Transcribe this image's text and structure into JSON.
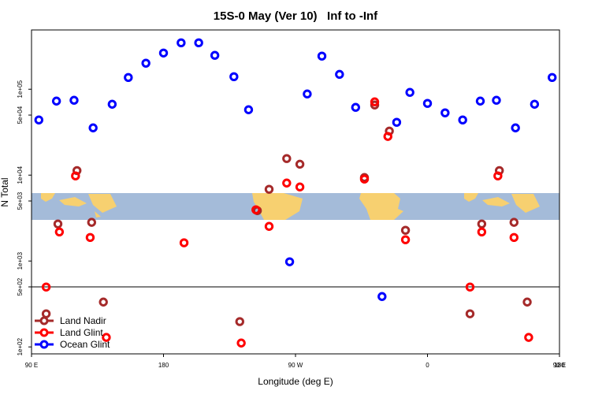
{
  "chart_data": {
    "type": "scatter",
    "title": "15S-0 May (Ver 10)   Inf to -Inf",
    "x_label": "Longitude (deg E)",
    "y_label": "N Total",
    "xlim": [
      90,
      450
    ],
    "ylim": [
      83,
      490000
    ],
    "log_y": true,
    "legend": "lower left",
    "hline": 500,
    "xticks": [
      {
        "value": 90,
        "label": "90 E"
      },
      {
        "value": 180,
        "label": "180"
      },
      {
        "value": 270,
        "label": "90 W"
      },
      {
        "value": 360,
        "label": "0"
      },
      {
        "value": 450,
        "label": "90 E"
      },
      {
        "value": 540,
        "label": "180"
      }
    ],
    "yticks": [
      {
        "value": 100,
        "label": "1e+02"
      },
      {
        "value": 500,
        "label": "5e+02"
      },
      {
        "value": 1000,
        "label": "1e+03"
      },
      {
        "value": 5000,
        "label": "5e+03"
      },
      {
        "value": 10000,
        "label": "1e+04"
      },
      {
        "value": 50000,
        "label": "5e+04"
      },
      {
        "value": 100000,
        "label": "1e+05"
      }
    ],
    "series": [
      {
        "name": "Land Nadir",
        "color": "#a52a2a",
        "x": [
          100,
          108,
          121,
          131,
          139,
          232,
          244,
          252,
          264,
          273,
          317,
          324,
          334,
          345,
          389,
          397,
          409,
          419,
          428
        ],
        "values": [
          243,
          2700,
          11300,
          2820,
          333,
          197,
          3860,
          6840,
          15600,
          13400,
          9380,
          65600,
          32600,
          2280,
          243,
          2700,
          11300,
          2820,
          333
        ]
      },
      {
        "name": "Land Glint",
        "color": "#ff0000",
        "x": [
          100,
          109,
          120,
          130,
          141,
          194,
          233,
          243,
          252,
          264,
          273,
          317,
          324,
          333,
          345,
          389,
          397,
          408,
          419,
          429
        ],
        "values": [
          498,
          2180,
          9790,
          1880,
          129,
          1630,
          111,
          3950,
          2530,
          8090,
          7280,
          9000,
          71300,
          28200,
          1770,
          498,
          2180,
          9790,
          1880,
          129
        ]
      },
      {
        "name": "Ocean Glint",
        "color": "#0000ff",
        "x": [
          95,
          107,
          119,
          132,
          145,
          156,
          168,
          180,
          192,
          204,
          215,
          228,
          238,
          266,
          278,
          288,
          300,
          311,
          329,
          339,
          348,
          360,
          372,
          384,
          396,
          407,
          420,
          433,
          445
        ],
        "values": [
          43900,
          72800,
          74400,
          35500,
          66900,
          137000,
          201000,
          264000,
          347000,
          347000,
          248000,
          140000,
          57700,
          980,
          88100,
          243000,
          149000,
          61500,
          386,
          41200,
          91900,
          68400,
          53100,
          43900,
          72800,
          74400,
          35500,
          66900,
          137000
        ]
      }
    ]
  }
}
